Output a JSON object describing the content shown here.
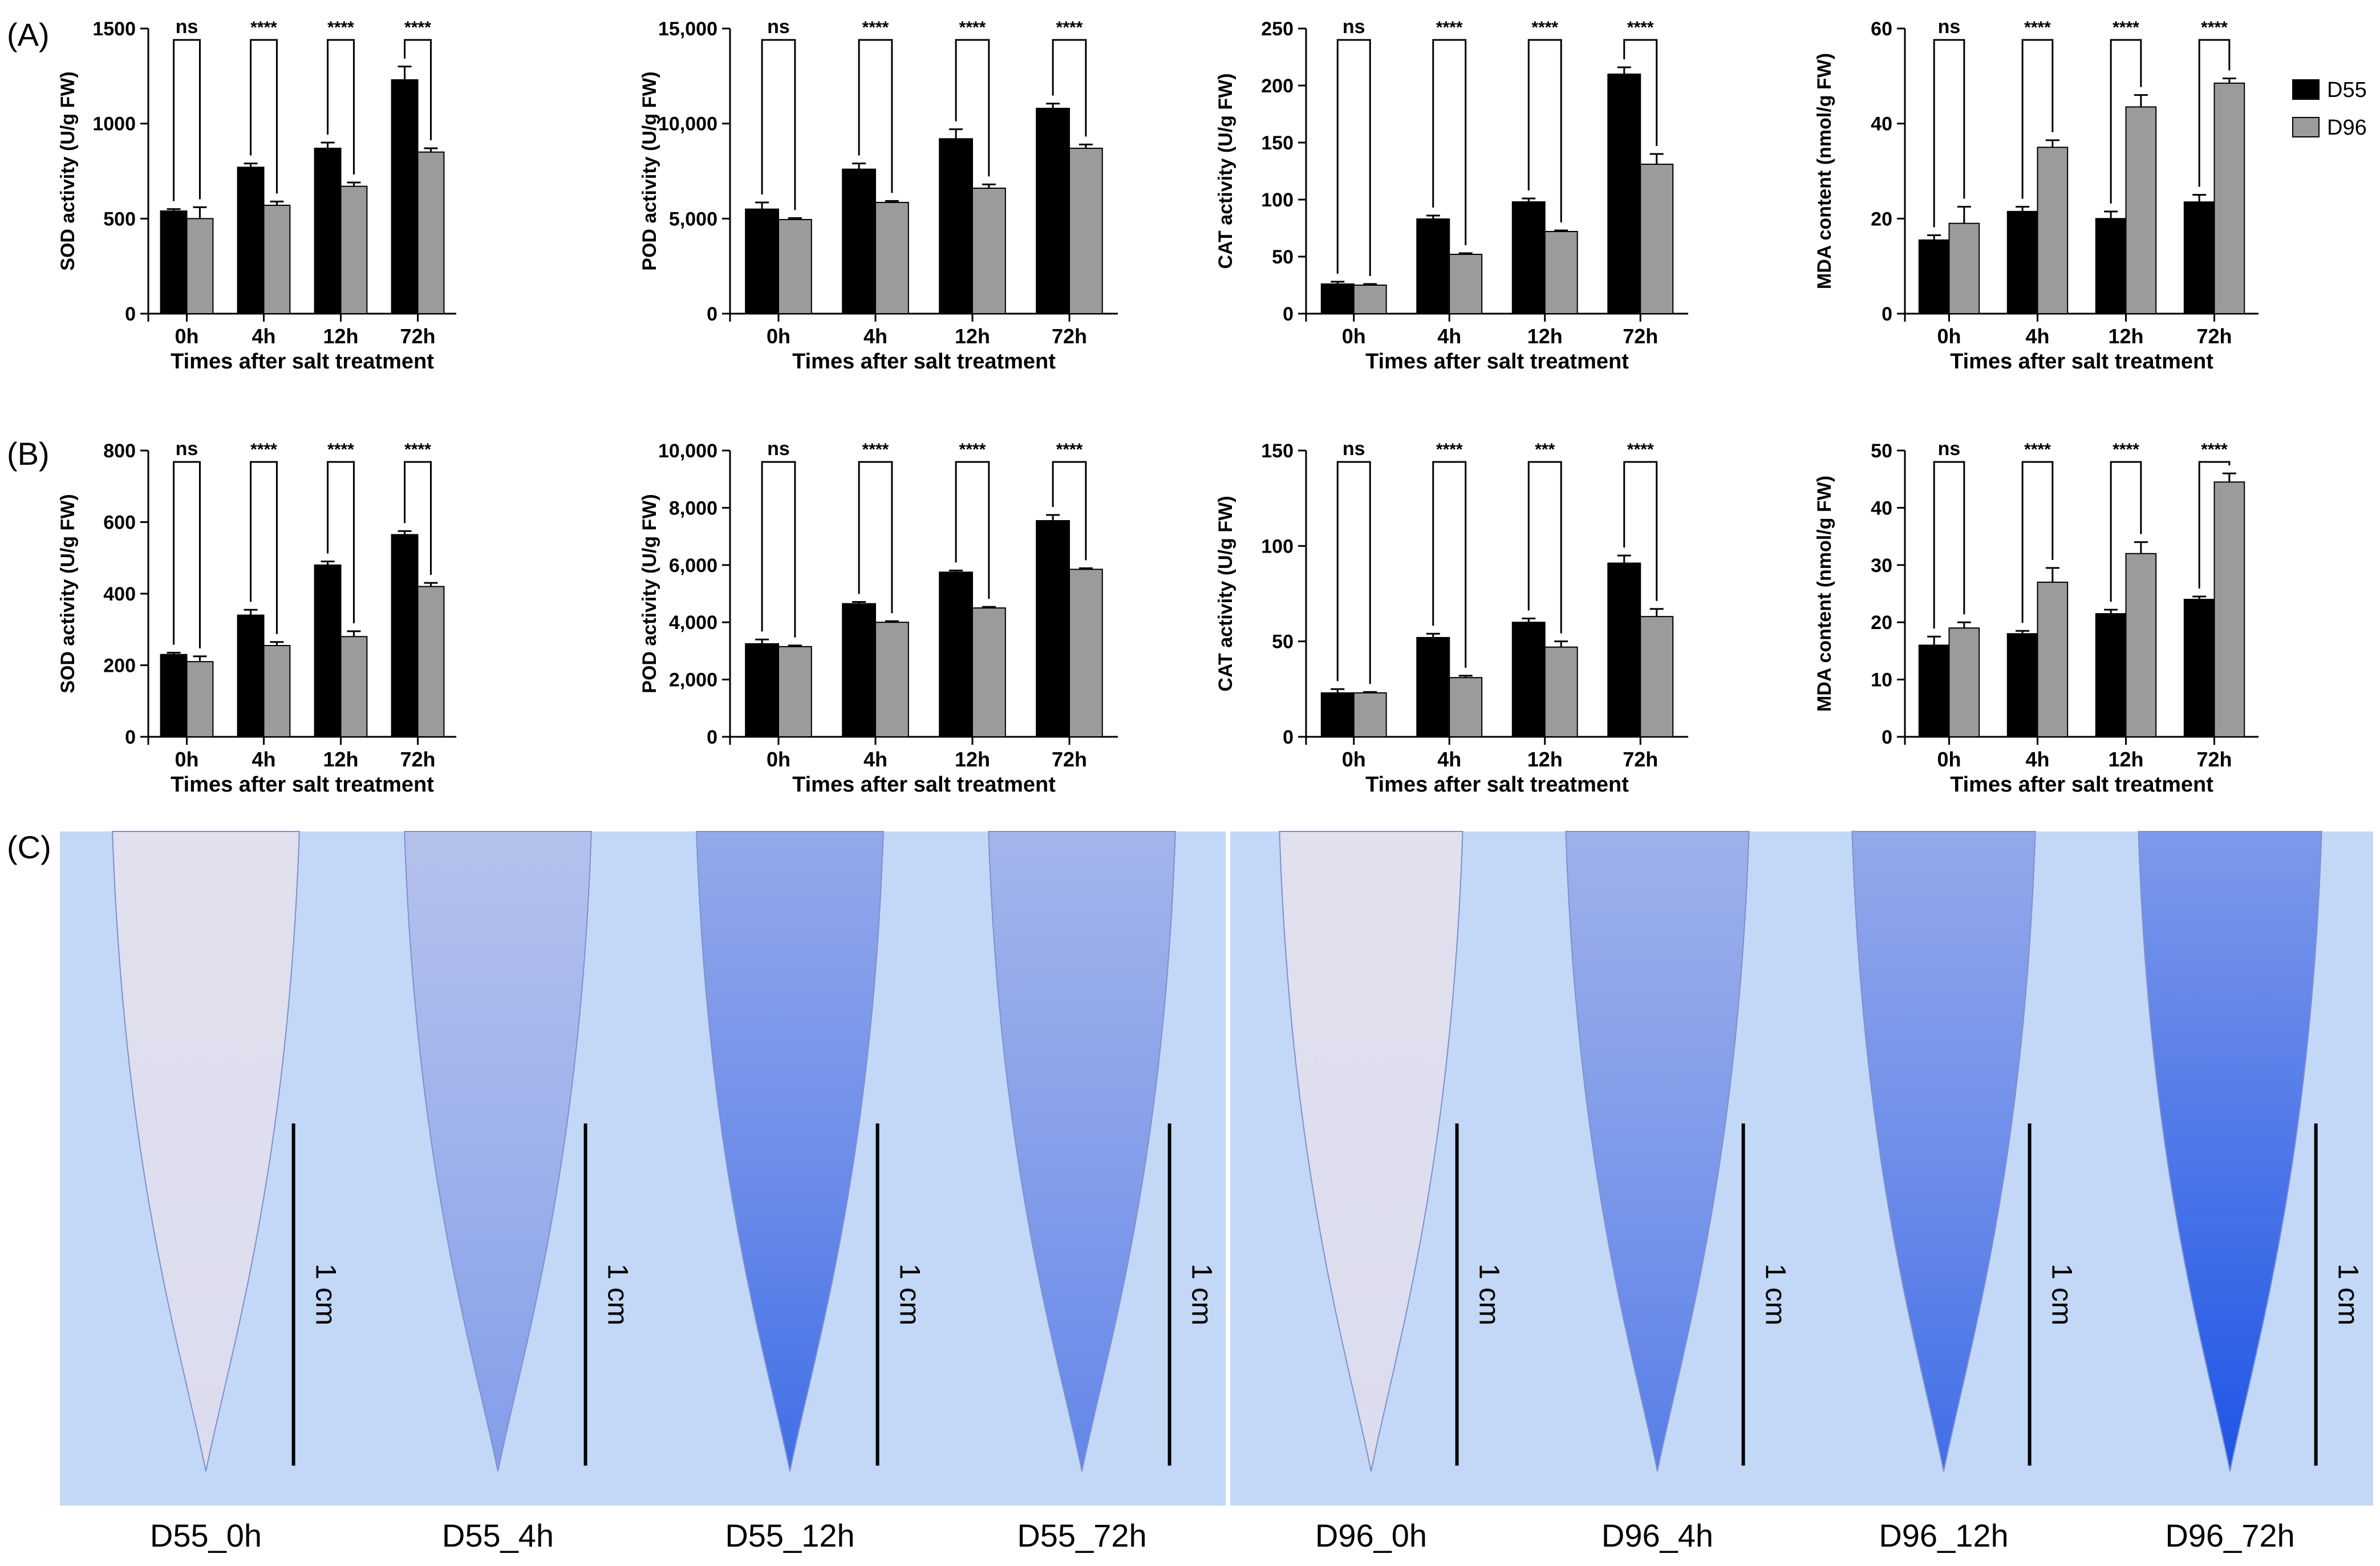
{
  "figure": {
    "panel_labels": [
      "(A)",
      "(B)",
      "(C)"
    ],
    "legend": [
      {
        "name": "D55",
        "color": "#000000"
      },
      {
        "name": "D96",
        "color": "#9b9b9b"
      }
    ],
    "scale_bar_label": "1 cm",
    "image_captions": [
      "D55_0h",
      "D55_4h",
      "D55_12h",
      "D55_72h",
      "D96_0h",
      "D96_4h",
      "D96_12h",
      "D96_72h"
    ],
    "stain_levels": [
      0.05,
      0.45,
      0.75,
      0.6,
      0.05,
      0.65,
      0.75,
      0.95
    ],
    "colors": {
      "bar_d55": "#000000",
      "bar_d96": "#9b9b9b",
      "bg_blue": "#c2d8f6",
      "stain_blue": "#1e55e6"
    }
  },
  "chart_data": [
    {
      "type": "bar",
      "panel": "A",
      "title": "",
      "xlabel": "Times after salt treatment",
      "ylabel": "SOD activity (U/g FW)",
      "categories": [
        "0h",
        "4h",
        "12h",
        "72h"
      ],
      "ylim": [
        0,
        1500
      ],
      "yticks": [
        "0",
        "500",
        "1000",
        "1500"
      ],
      "series": [
        {
          "name": "D55",
          "values": [
            540,
            770,
            870,
            1230
          ],
          "errors": [
            10,
            20,
            30,
            70
          ]
        },
        {
          "name": "D96",
          "values": [
            500,
            570,
            670,
            850
          ],
          "errors": [
            60,
            20,
            20,
            20
          ]
        }
      ],
      "significance": [
        "ns",
        "****",
        "****",
        "****"
      ]
    },
    {
      "type": "bar",
      "panel": "A",
      "title": "",
      "xlabel": "Times after salt treatment",
      "ylabel": "POD activity (U/g FW)",
      "categories": [
        "0h",
        "4h",
        "12h",
        "72h"
      ],
      "ylim": [
        0,
        15000
      ],
      "yticks": [
        "0",
        "5,000",
        "10,000",
        "15,000"
      ],
      "series": [
        {
          "name": "D55",
          "values": [
            5500,
            7600,
            9200,
            10800
          ],
          "errors": [
            350,
            300,
            500,
            250
          ]
        },
        {
          "name": "D96",
          "values": [
            4950,
            5850,
            6600,
            8700
          ],
          "errors": [
            80,
            80,
            200,
            200
          ]
        }
      ],
      "significance": [
        "ns",
        "****",
        "****",
        "****"
      ]
    },
    {
      "type": "bar",
      "panel": "A",
      "title": "",
      "xlabel": "Times after salt treatment",
      "ylabel": "CAT activity (U/g FW)",
      "categories": [
        "0h",
        "4h",
        "12h",
        "72h"
      ],
      "ylim": [
        0,
        250
      ],
      "yticks": [
        "0",
        "50",
        "100",
        "150",
        "200",
        "250"
      ],
      "series": [
        {
          "name": "D55",
          "values": [
            26,
            83,
            98,
            210
          ],
          "errors": [
            2,
            3,
            3,
            6
          ]
        },
        {
          "name": "D96",
          "values": [
            25,
            52,
            72,
            131
          ],
          "errors": [
            1,
            1,
            1,
            9
          ]
        }
      ],
      "significance": [
        "ns",
        "****",
        "****",
        "****"
      ]
    },
    {
      "type": "bar",
      "panel": "A",
      "title": "",
      "xlabel": "Times after salt treatment",
      "ylabel": "MDA content (nmol/g FW)",
      "categories": [
        "0h",
        "4h",
        "12h",
        "72h"
      ],
      "ylim": [
        0,
        60
      ],
      "yticks": [
        "0",
        "20",
        "40",
        "60"
      ],
      "series": [
        {
          "name": "D55",
          "values": [
            15.5,
            21.5,
            20,
            23.5
          ],
          "errors": [
            1,
            1,
            1.5,
            1.5
          ]
        },
        {
          "name": "D96",
          "values": [
            19,
            35,
            43.5,
            48.5
          ],
          "errors": [
            3.5,
            1.5,
            2.5,
            1
          ]
        }
      ],
      "significance": [
        "ns",
        "****",
        "****",
        "****"
      ]
    },
    {
      "type": "bar",
      "panel": "B",
      "title": "",
      "xlabel": "Times after salt treatment",
      "ylabel": "SOD activity (U/g FW)",
      "categories": [
        "0h",
        "4h",
        "12h",
        "72h"
      ],
      "ylim": [
        0,
        800
      ],
      "yticks": [
        "0",
        "200",
        "400",
        "600",
        "800"
      ],
      "series": [
        {
          "name": "D55",
          "values": [
            230,
            340,
            480,
            565
          ],
          "errors": [
            5,
            15,
            10,
            10
          ]
        },
        {
          "name": "D96",
          "values": [
            210,
            255,
            280,
            420
          ],
          "errors": [
            15,
            10,
            15,
            10
          ]
        }
      ],
      "significance": [
        "ns",
        "****",
        "****",
        "****"
      ]
    },
    {
      "type": "bar",
      "panel": "B",
      "title": "",
      "xlabel": "Times after salt treatment",
      "ylabel": "POD activity (U/g FW)",
      "categories": [
        "0h",
        "4h",
        "12h",
        "72h"
      ],
      "ylim": [
        0,
        10000
      ],
      "yticks": [
        "0",
        "2,000",
        "4,000",
        "6,000",
        "8,000",
        "10,000"
      ],
      "series": [
        {
          "name": "D55",
          "values": [
            3250,
            4650,
            5750,
            7550
          ],
          "errors": [
            150,
            60,
            60,
            200
          ]
        },
        {
          "name": "D96",
          "values": [
            3150,
            4000,
            4500,
            5850
          ],
          "errors": [
            40,
            40,
            40,
            40
          ]
        }
      ],
      "significance": [
        "ns",
        "****",
        "****",
        "****"
      ]
    },
    {
      "type": "bar",
      "panel": "B",
      "title": "",
      "xlabel": "Times after salt treatment",
      "ylabel": "CAT activity (U/g FW)",
      "categories": [
        "0h",
        "4h",
        "12h",
        "72h"
      ],
      "ylim": [
        0,
        150
      ],
      "yticks": [
        "0",
        "50",
        "100",
        "150"
      ],
      "series": [
        {
          "name": "D55",
          "values": [
            23,
            52,
            60,
            91
          ],
          "errors": [
            2,
            2,
            2,
            4
          ]
        },
        {
          "name": "D96",
          "values": [
            23,
            31,
            47,
            63
          ],
          "errors": [
            0.5,
            1,
            3,
            4
          ]
        }
      ],
      "significance": [
        "ns",
        "****",
        "***",
        "****"
      ]
    },
    {
      "type": "bar",
      "panel": "B",
      "title": "",
      "xlabel": "Times after salt treatment",
      "ylabel": "MDA content (nmol/g FW)",
      "categories": [
        "0h",
        "4h",
        "12h",
        "72h"
      ],
      "ylim": [
        0,
        50
      ],
      "yticks": [
        "0",
        "10",
        "20",
        "30",
        "40",
        "50"
      ],
      "series": [
        {
          "name": "D55",
          "values": [
            16,
            18,
            21.5,
            24
          ],
          "errors": [
            1.5,
            0.5,
            0.7,
            0.5
          ]
        },
        {
          "name": "D96",
          "values": [
            19,
            27,
            32,
            44.5
          ],
          "errors": [
            1,
            2.5,
            2,
            1.5
          ]
        }
      ],
      "significance": [
        "ns",
        "****",
        "****",
        "****"
      ]
    }
  ]
}
